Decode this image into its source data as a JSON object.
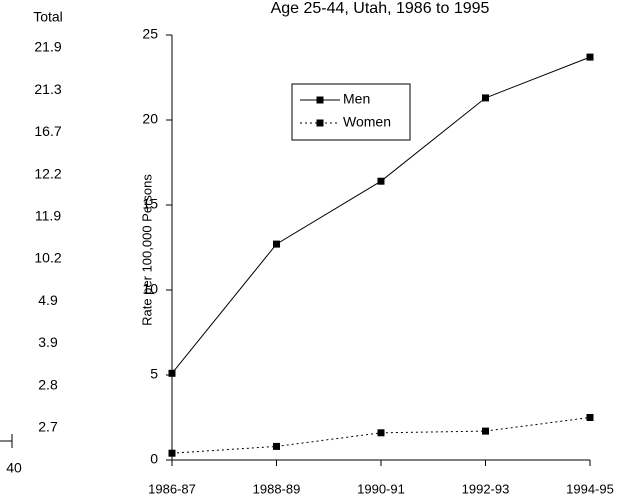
{
  "side_table": {
    "header": "Total",
    "values": [
      "21.9",
      "21.3",
      "16.7",
      "12.2",
      "11.9",
      "10.2",
      "4.9",
      "3.9",
      "2.8",
      "2.7"
    ],
    "axis_label": "40"
  },
  "chart_data": {
    "type": "line",
    "title": "Age 25-44, Utah, 1986 to 1995",
    "y_label": "Rate per 100,000 Persons",
    "categories": [
      "1986-87",
      "1988-89",
      "1990-91",
      "1992-93",
      "1994-95"
    ],
    "series": [
      {
        "name": "Men",
        "color": "#000000",
        "dash": "solid",
        "values": [
          5.1,
          12.7,
          16.4,
          21.3,
          23.7
        ]
      },
      {
        "name": "Women",
        "color": "#000000",
        "dash": "dotted",
        "values": [
          0.4,
          0.8,
          1.6,
          1.7,
          2.5
        ]
      }
    ],
    "ylim": [
      0,
      25
    ],
    "yticks": [
      0,
      5,
      10,
      15,
      20,
      25
    ],
    "grid": false
  }
}
